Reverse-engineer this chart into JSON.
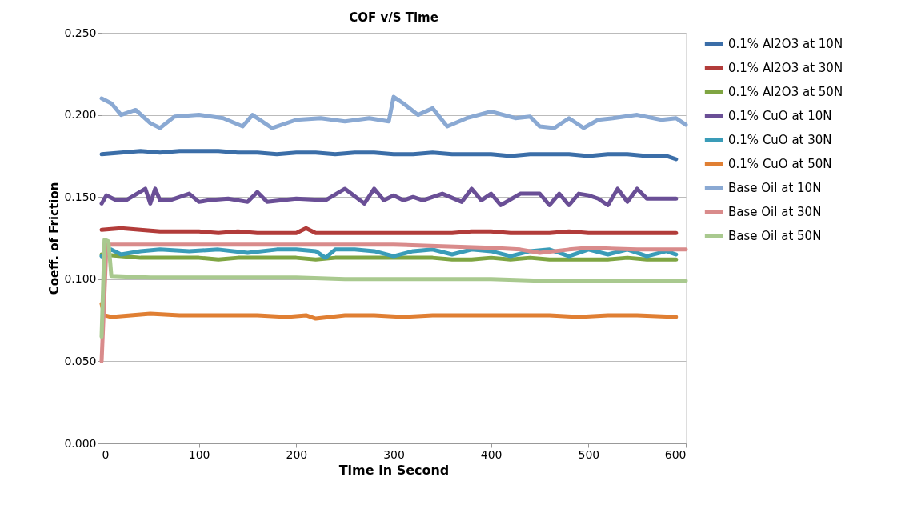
{
  "chart_data": {
    "type": "line",
    "title": "COF v/S Time",
    "xlabel": "Time in Second",
    "ylabel": "Coeff. of Friction",
    "xlim": [
      0,
      600
    ],
    "xticks": [
      0,
      100,
      200,
      300,
      400,
      500,
      600
    ],
    "ylim": [
      0,
      0.25
    ],
    "yticks": [
      {
        "value": 0,
        "label": "0.000"
      },
      {
        "value": 0.05,
        "label": "0.050"
      },
      {
        "value": 0.1,
        "label": "0.100"
      },
      {
        "value": 0.15,
        "label": "0.150"
      },
      {
        "value": 0.2,
        "label": "0.200"
      },
      {
        "value": 0.25,
        "label": "0.250"
      }
    ],
    "grid": "y",
    "legend": "right",
    "marker": "none",
    "line_style": "solid",
    "series": [
      {
        "name": "0.1% Al2O3 at 10N",
        "color": "#3b6ea8",
        "x": [
          0,
          20,
          40,
          60,
          80,
          100,
          120,
          140,
          160,
          180,
          200,
          220,
          240,
          260,
          280,
          300,
          320,
          340,
          360,
          380,
          400,
          420,
          440,
          460,
          480,
          500,
          520,
          540,
          560,
          580,
          590
        ],
        "values": [
          0.176,
          0.177,
          0.178,
          0.177,
          0.178,
          0.178,
          0.178,
          0.177,
          0.177,
          0.176,
          0.177,
          0.177,
          0.176,
          0.177,
          0.177,
          0.176,
          0.176,
          0.177,
          0.176,
          0.176,
          0.176,
          0.175,
          0.176,
          0.176,
          0.176,
          0.175,
          0.176,
          0.176,
          0.175,
          0.175,
          0.173
        ]
      },
      {
        "name": "0.1% Al2O3 at 30N",
        "color": "#b23c3a",
        "x": [
          0,
          20,
          40,
          60,
          80,
          100,
          120,
          140,
          160,
          180,
          200,
          210,
          220,
          240,
          260,
          280,
          300,
          320,
          340,
          360,
          380,
          400,
          420,
          440,
          460,
          480,
          500,
          520,
          540,
          560,
          590
        ],
        "values": [
          0.13,
          0.131,
          0.13,
          0.129,
          0.129,
          0.129,
          0.128,
          0.129,
          0.128,
          0.128,
          0.128,
          0.131,
          0.128,
          0.128,
          0.128,
          0.128,
          0.128,
          0.128,
          0.128,
          0.128,
          0.129,
          0.129,
          0.128,
          0.128,
          0.128,
          0.129,
          0.128,
          0.128,
          0.128,
          0.128,
          0.128
        ]
      },
      {
        "name": "0.1% Al2O3 at 50N",
        "color": "#7fa542",
        "x": [
          0,
          20,
          40,
          60,
          80,
          100,
          120,
          140,
          160,
          180,
          200,
          220,
          240,
          260,
          280,
          300,
          320,
          340,
          360,
          380,
          400,
          420,
          440,
          460,
          480,
          500,
          520,
          540,
          560,
          590
        ],
        "values": [
          0.115,
          0.114,
          0.113,
          0.113,
          0.113,
          0.113,
          0.112,
          0.113,
          0.113,
          0.113,
          0.113,
          0.112,
          0.113,
          0.113,
          0.113,
          0.113,
          0.113,
          0.113,
          0.112,
          0.112,
          0.113,
          0.112,
          0.113,
          0.112,
          0.112,
          0.112,
          0.112,
          0.113,
          0.112,
          0.112
        ]
      },
      {
        "name": "0.1% CuO at 10N",
        "color": "#6a4f96",
        "x": [
          0,
          5,
          15,
          25,
          45,
          50,
          55,
          60,
          70,
          90,
          100,
          110,
          130,
          150,
          160,
          170,
          200,
          230,
          250,
          270,
          280,
          290,
          300,
          310,
          320,
          330,
          350,
          370,
          380,
          390,
          400,
          410,
          430,
          440,
          450,
          460,
          470,
          480,
          490,
          500,
          510,
          520,
          530,
          540,
          550,
          560,
          570,
          590
        ],
        "values": [
          0.146,
          0.151,
          0.148,
          0.148,
          0.155,
          0.146,
          0.155,
          0.148,
          0.148,
          0.152,
          0.147,
          0.148,
          0.149,
          0.147,
          0.153,
          0.147,
          0.149,
          0.148,
          0.155,
          0.146,
          0.155,
          0.148,
          0.151,
          0.148,
          0.15,
          0.148,
          0.152,
          0.147,
          0.155,
          0.148,
          0.152,
          0.145,
          0.152,
          0.152,
          0.152,
          0.145,
          0.152,
          0.145,
          0.152,
          0.151,
          0.149,
          0.145,
          0.155,
          0.147,
          0.155,
          0.149,
          0.149,
          0.149
        ]
      },
      {
        "name": "0.1% CuO at 30N",
        "color": "#3a9cb8",
        "x": [
          0,
          10,
          20,
          40,
          60,
          90,
          120,
          150,
          180,
          200,
          220,
          230,
          240,
          260,
          280,
          300,
          320,
          340,
          360,
          380,
          400,
          420,
          440,
          460,
          480,
          500,
          520,
          540,
          560,
          580,
          590
        ],
        "values": [
          0.114,
          0.118,
          0.115,
          0.117,
          0.118,
          0.117,
          0.118,
          0.116,
          0.118,
          0.118,
          0.117,
          0.113,
          0.118,
          0.118,
          0.117,
          0.114,
          0.117,
          0.118,
          0.115,
          0.118,
          0.117,
          0.114,
          0.117,
          0.118,
          0.114,
          0.118,
          0.115,
          0.118,
          0.114,
          0.117,
          0.115
        ]
      },
      {
        "name": "0.1% CuO at 50N",
        "color": "#e07f33",
        "x": [
          0,
          3,
          10,
          30,
          50,
          80,
          100,
          130,
          160,
          190,
          210,
          220,
          250,
          280,
          310,
          340,
          370,
          400,
          430,
          460,
          490,
          520,
          550,
          590
        ],
        "values": [
          0.085,
          0.078,
          0.077,
          0.078,
          0.079,
          0.078,
          0.078,
          0.078,
          0.078,
          0.077,
          0.078,
          0.076,
          0.078,
          0.078,
          0.077,
          0.078,
          0.078,
          0.078,
          0.078,
          0.078,
          0.077,
          0.078,
          0.078,
          0.077
        ]
      },
      {
        "name": "Base Oil at 10N",
        "color": "#8aa9d3",
        "x": [
          0,
          10,
          20,
          35,
          50,
          60,
          75,
          100,
          125,
          145,
          155,
          175,
          200,
          225,
          250,
          275,
          295,
          300,
          310,
          325,
          340,
          355,
          375,
          400,
          425,
          440,
          450,
          465,
          480,
          495,
          510,
          525,
          550,
          575,
          590,
          600
        ],
        "values": [
          0.21,
          0.207,
          0.2,
          0.203,
          0.195,
          0.192,
          0.199,
          0.2,
          0.198,
          0.193,
          0.2,
          0.192,
          0.197,
          0.198,
          0.196,
          0.198,
          0.196,
          0.211,
          0.207,
          0.2,
          0.204,
          0.193,
          0.198,
          0.202,
          0.198,
          0.199,
          0.193,
          0.192,
          0.198,
          0.192,
          0.197,
          0.198,
          0.2,
          0.197,
          0.198,
          0.194
        ]
      },
      {
        "name": "Base Oil at 30N",
        "color": "#d98b8b",
        "x": [
          0,
          5,
          50,
          100,
          150,
          200,
          250,
          300,
          350,
          400,
          430,
          450,
          480,
          500,
          550,
          600
        ],
        "values": [
          0.05,
          0.121,
          0.121,
          0.121,
          0.121,
          0.121,
          0.121,
          0.121,
          0.12,
          0.119,
          0.118,
          0.116,
          0.118,
          0.119,
          0.118,
          0.118
        ]
      },
      {
        "name": "Base Oil at 50N",
        "color": "#a9c98f",
        "x": [
          0,
          3,
          7,
          10,
          50,
          100,
          150,
          200,
          250,
          300,
          350,
          400,
          450,
          500,
          550,
          600
        ],
        "values": [
          0.065,
          0.124,
          0.123,
          0.102,
          0.101,
          0.101,
          0.101,
          0.101,
          0.1,
          0.1,
          0.1,
          0.1,
          0.099,
          0.099,
          0.099,
          0.099
        ]
      }
    ]
  }
}
